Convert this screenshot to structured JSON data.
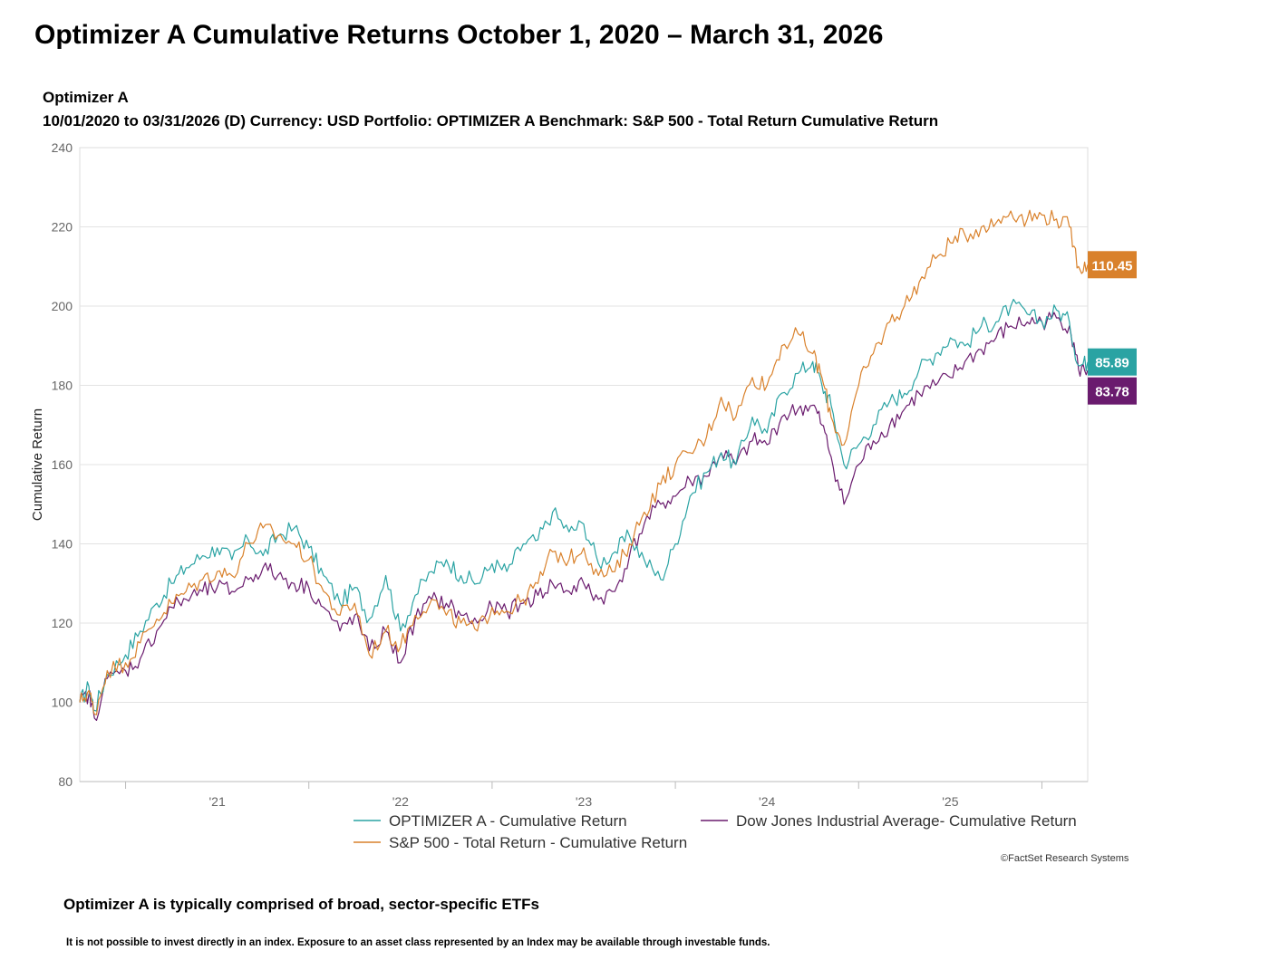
{
  "page": {
    "title": "Optimizer A Cumulative Returns October 1, 2020 – March 31, 2026",
    "subtitle_line1": "Optimizer A",
    "subtitle_line2": "10/01/2020 to 03/31/2026 (D) Currency:  USD Portfolio:  OPTIMIZER A Benchmark:  S&P 500 - Total Return Cumulative Return",
    "copyright": "©FactSet Research Systems",
    "note": "Optimizer A is typically comprised of broad, sector-specific ETFs",
    "disclaimer": "It is not possible to invest directly in an index. Exposure to an asset class represented by an Index may be available through investable funds."
  },
  "chart_data": {
    "type": "line",
    "title": "",
    "xlabel": "",
    "ylabel": "Cumulative Return",
    "ylim": [
      80,
      240
    ],
    "yticks": [
      80,
      100,
      120,
      140,
      160,
      180,
      200,
      220,
      240
    ],
    "xlim": [
      2020.75,
      2026.25
    ],
    "xticks": [
      {
        "label": "'21",
        "value": 2021.5
      },
      {
        "label": "'22",
        "value": 2022.5
      },
      {
        "label": "'23",
        "value": 2023.5
      },
      {
        "label": "'24",
        "value": 2024.5
      },
      {
        "label": "'25",
        "value": 2025.5
      }
    ],
    "year_boundaries": [
      2021,
      2022,
      2023,
      2024,
      2025,
      2026
    ],
    "grid": true,
    "series": [
      {
        "name": "OPTIMIZER A - Cumulative Return",
        "color": "#2aa3a3",
        "end_label": "85.89",
        "x": [
          2020.75,
          2020.8,
          2020.83,
          2020.9,
          2021.0,
          2021.08,
          2021.17,
          2021.25,
          2021.33,
          2021.42,
          2021.5,
          2021.58,
          2021.67,
          2021.75,
          2021.83,
          2021.92,
          2022.0,
          2022.08,
          2022.17,
          2022.25,
          2022.33,
          2022.42,
          2022.5,
          2022.58,
          2022.67,
          2022.75,
          2022.83,
          2022.92,
          2023.0,
          2023.08,
          2023.17,
          2023.25,
          2023.33,
          2023.42,
          2023.5,
          2023.58,
          2023.67,
          2023.75,
          2023.83,
          2023.92,
          2024.0,
          2024.08,
          2024.17,
          2024.25,
          2024.33,
          2024.42,
          2024.5,
          2024.58,
          2024.67,
          2024.75,
          2024.8,
          2024.85,
          2024.92,
          2025.0,
          2025.08,
          2025.17,
          2025.25,
          2025.33,
          2025.42,
          2025.5,
          2025.58,
          2025.67,
          2025.75,
          2025.83,
          2025.92,
          2026.0,
          2026.08,
          2026.15,
          2026.2,
          2026.25
        ],
        "values": [
          100,
          104,
          98,
          107,
          112,
          118,
          125,
          130,
          134,
          137,
          139,
          136,
          141,
          137,
          142,
          144,
          139,
          132,
          125,
          129,
          121,
          132,
          118,
          127,
          133,
          136,
          132,
          130,
          135,
          133,
          140,
          141,
          148,
          143,
          145,
          135,
          138,
          142,
          136,
          131,
          140,
          152,
          158,
          163,
          160,
          172,
          168,
          178,
          183,
          186,
          180,
          175,
          160,
          165,
          170,
          176,
          178,
          184,
          188,
          192,
          190,
          195,
          196,
          200,
          198,
          196,
          199,
          196,
          185,
          185.9
        ]
      },
      {
        "name": "S&P 500 - Total Return - Cumulative Return",
        "color": "#d9812b",
        "end_label": "110.45",
        "x": [
          2020.75,
          2020.8,
          2020.83,
          2020.9,
          2021.0,
          2021.08,
          2021.17,
          2021.25,
          2021.33,
          2021.42,
          2021.5,
          2021.58,
          2021.67,
          2021.75,
          2021.83,
          2021.92,
          2022.0,
          2022.08,
          2022.17,
          2022.25,
          2022.33,
          2022.42,
          2022.5,
          2022.58,
          2022.67,
          2022.75,
          2022.83,
          2022.92,
          2023.0,
          2023.08,
          2023.17,
          2023.25,
          2023.33,
          2023.42,
          2023.5,
          2023.58,
          2023.67,
          2023.75,
          2023.83,
          2023.92,
          2024.0,
          2024.08,
          2024.17,
          2024.25,
          2024.33,
          2024.42,
          2024.5,
          2024.58,
          2024.67,
          2024.75,
          2024.8,
          2024.85,
          2024.92,
          2025.0,
          2025.08,
          2025.17,
          2025.25,
          2025.33,
          2025.42,
          2025.5,
          2025.58,
          2025.67,
          2025.75,
          2025.83,
          2025.92,
          2026.0,
          2026.08,
          2026.15,
          2026.2,
          2026.25
        ],
        "values": [
          100,
          103,
          97,
          108,
          110,
          115,
          121,
          125,
          128,
          131,
          133,
          132,
          140,
          144,
          142,
          140,
          136,
          128,
          122,
          125,
          112,
          118,
          114,
          122,
          126,
          122,
          120,
          118,
          124,
          123,
          126,
          130,
          138,
          136,
          139,
          132,
          133,
          140,
          148,
          155,
          160,
          163,
          167,
          177,
          172,
          182,
          180,
          190,
          193,
          188,
          182,
          172,
          165,
          180,
          188,
          196,
          200,
          206,
          212,
          216,
          218,
          220,
          221,
          224,
          222,
          223,
          222,
          220,
          210,
          210.45
        ]
      },
      {
        "name": "Dow Jones Industrial Average- Cumulative Return",
        "color": "#6a1b6e",
        "end_label": "83.78",
        "x": [
          2020.75,
          2020.8,
          2020.83,
          2020.9,
          2021.0,
          2021.08,
          2021.17,
          2021.25,
          2021.33,
          2021.42,
          2021.5,
          2021.58,
          2021.67,
          2021.75,
          2021.83,
          2021.92,
          2022.0,
          2022.08,
          2022.17,
          2022.25,
          2022.33,
          2022.42,
          2022.5,
          2022.58,
          2022.67,
          2022.75,
          2022.83,
          2022.92,
          2023.0,
          2023.08,
          2023.17,
          2023.25,
          2023.33,
          2023.42,
          2023.5,
          2023.58,
          2023.67,
          2023.75,
          2023.83,
          2023.92,
          2024.0,
          2024.08,
          2024.17,
          2024.25,
          2024.33,
          2024.42,
          2024.5,
          2024.58,
          2024.67,
          2024.75,
          2024.8,
          2024.85,
          2024.92,
          2025.0,
          2025.08,
          2025.17,
          2025.25,
          2025.33,
          2025.42,
          2025.5,
          2025.58,
          2025.67,
          2025.75,
          2025.83,
          2025.92,
          2026.0,
          2026.08,
          2026.15,
          2026.2,
          2026.25
        ],
        "values": [
          100,
          102,
          96,
          106,
          108,
          111,
          118,
          124,
          126,
          128,
          129,
          128,
          131,
          134,
          132,
          130,
          129,
          124,
          118,
          122,
          113,
          118,
          110,
          121,
          126,
          125,
          122,
          120,
          124,
          123,
          125,
          127,
          130,
          128,
          130,
          126,
          128,
          137,
          145,
          150,
          152,
          156,
          157,
          163,
          160,
          166,
          165,
          172,
          174,
          175,
          170,
          162,
          150,
          160,
          166,
          170,
          174,
          178,
          180,
          182,
          186,
          189,
          192,
          195,
          196,
          196,
          197,
          195,
          184,
          183.78
        ]
      }
    ],
    "legend": [
      {
        "label": "OPTIMIZER A - Cumulative Return",
        "series": 0
      },
      {
        "label": "Dow Jones Industrial Average- Cumulative Return",
        "series": 2
      },
      {
        "label": "S&P 500 - Total Return - Cumulative Return",
        "series": 1
      }
    ],
    "legend_position": "bottom"
  }
}
